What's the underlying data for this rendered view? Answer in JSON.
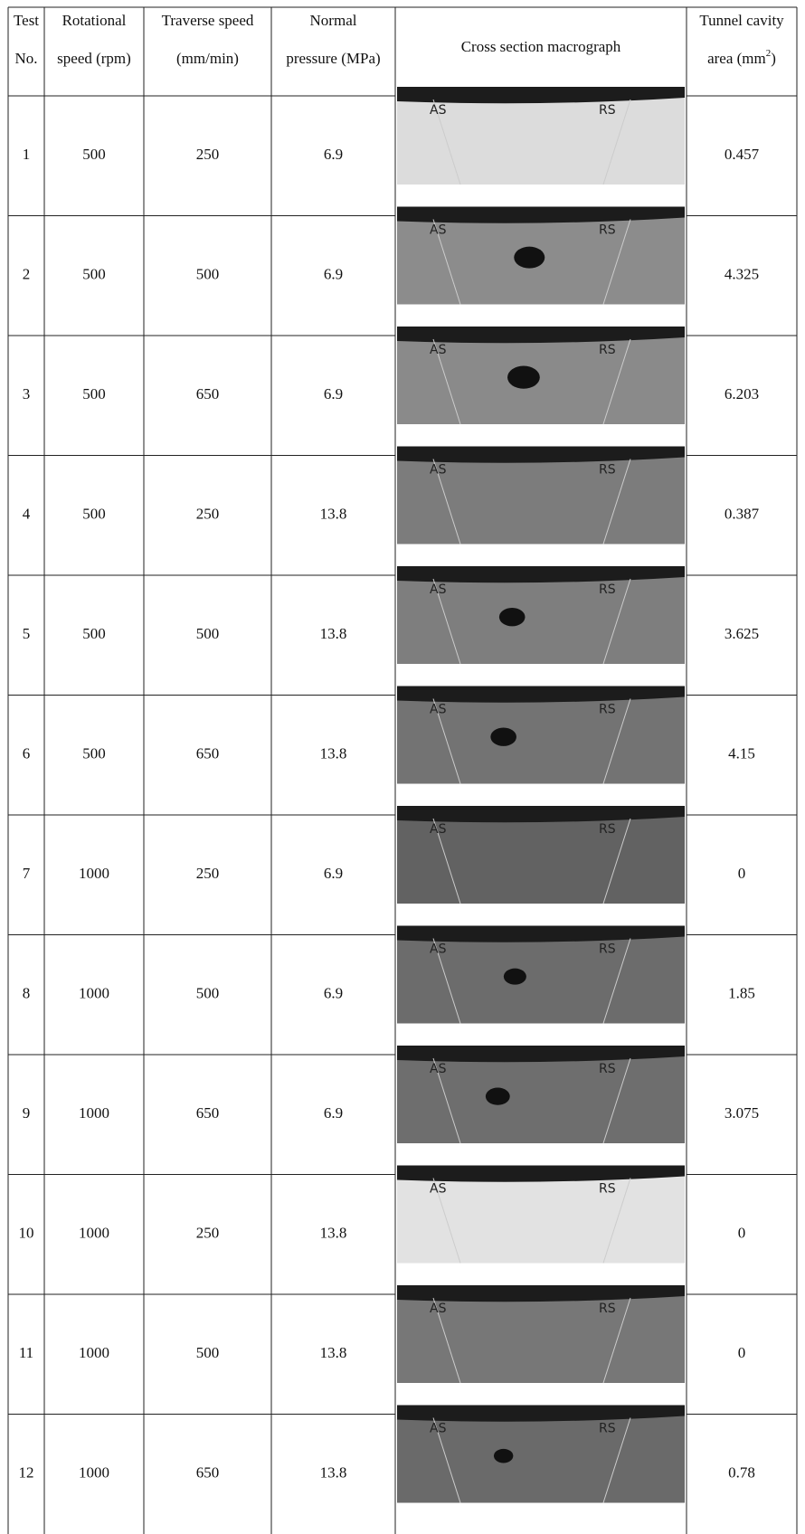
{
  "table": {
    "header": [
      {
        "lines": [
          "Test",
          "No."
        ]
      },
      {
        "lines": [
          "Rotational",
          "speed (rpm)"
        ]
      },
      {
        "lines": [
          "Traverse speed",
          "(mm/min)"
        ]
      },
      {
        "lines": [
          "Normal",
          "pressure (MPa)"
        ]
      },
      {
        "lines": [
          "Cross section macrograph"
        ]
      },
      {
        "lines": [
          "Tunnel cavity",
          "area (mm"
        ],
        "sup": "2",
        "tail": ")"
      }
    ],
    "rows": [
      {
        "test": 1,
        "rpm": 500,
        "speed": 250,
        "pressure": 6.9,
        "labels": [
          "AS",
          "RS"
        ],
        "area": 0.457
      },
      {
        "test": 2,
        "rpm": 500,
        "speed": 500,
        "pressure": 6.9,
        "labels": [
          "AS",
          "RS"
        ],
        "area": 4.325
      },
      {
        "test": 3,
        "rpm": 500,
        "speed": 650,
        "pressure": 6.9,
        "labels": [
          "AS",
          "RS"
        ],
        "area": 6.203
      },
      {
        "test": 4,
        "rpm": 500,
        "speed": 250,
        "pressure": 13.8,
        "labels": [
          "AS",
          "RS"
        ],
        "area": 0.387
      },
      {
        "test": 5,
        "rpm": 500,
        "speed": 500,
        "pressure": 13.8,
        "labels": [
          "AS",
          "RS"
        ],
        "area": 3.625
      },
      {
        "test": 6,
        "rpm": 500,
        "speed": 650,
        "pressure": 13.8,
        "labels": [
          "AS",
          "RS"
        ],
        "area": 4.15
      },
      {
        "test": 7,
        "rpm": 1000,
        "speed": 250,
        "pressure": 6.9,
        "labels": [
          "AS",
          "RS"
        ],
        "area": 0
      },
      {
        "test": 8,
        "rpm": 1000,
        "speed": 500,
        "pressure": 6.9,
        "labels": [
          "AS",
          "RS"
        ],
        "area": 1.85
      },
      {
        "test": 9,
        "rpm": 1000,
        "speed": 650,
        "pressure": 6.9,
        "labels": [
          "AS",
          "RS"
        ],
        "area": 3.075
      },
      {
        "test": 10,
        "rpm": 1000,
        "speed": 250,
        "pressure": 13.8,
        "labels": [
          "AS",
          "RS"
        ],
        "area": 0
      },
      {
        "test": 11,
        "rpm": 1000,
        "speed": 500,
        "pressure": 13.8,
        "labels": [
          "AS",
          "RS"
        ],
        "area": 0
      },
      {
        "test": 12,
        "rpm": 1000,
        "speed": 650,
        "pressure": 13.8,
        "labels": [
          "AS",
          "RS"
        ],
        "area": 0.78
      }
    ]
  }
}
